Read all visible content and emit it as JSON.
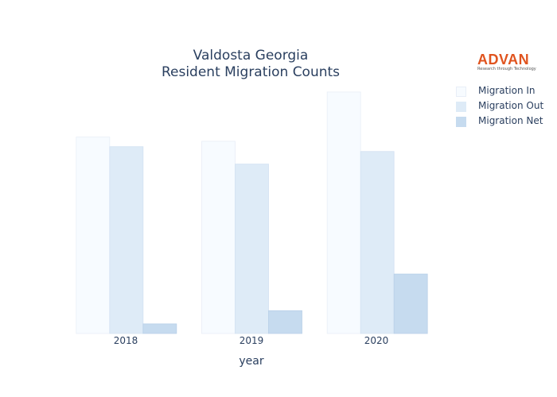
{
  "chart_data": {
    "type": "bar",
    "title": "Valdosta Georgia",
    "subtitle": "Resident Migration Counts",
    "xlabel": "year",
    "ylabel": "",
    "categories": [
      "2018",
      "2019",
      "2020"
    ],
    "series": [
      {
        "name": "Migration In",
        "values": [
          3270,
          3200,
          4020
        ],
        "color": "#f7fbff"
      },
      {
        "name": "Migration Out",
        "values": [
          3110,
          2820,
          3030
        ],
        "color": "#deebf7"
      },
      {
        "name": "Migration Net",
        "values": [
          160,
          380,
          990
        ],
        "color": "#c6dbef"
      }
    ],
    "ylim": [
      0,
      4230
    ],
    "grid": false,
    "legend_position": "top-right"
  },
  "logo": {
    "text": "ADVAN",
    "tagline": "Research through Technology"
  }
}
